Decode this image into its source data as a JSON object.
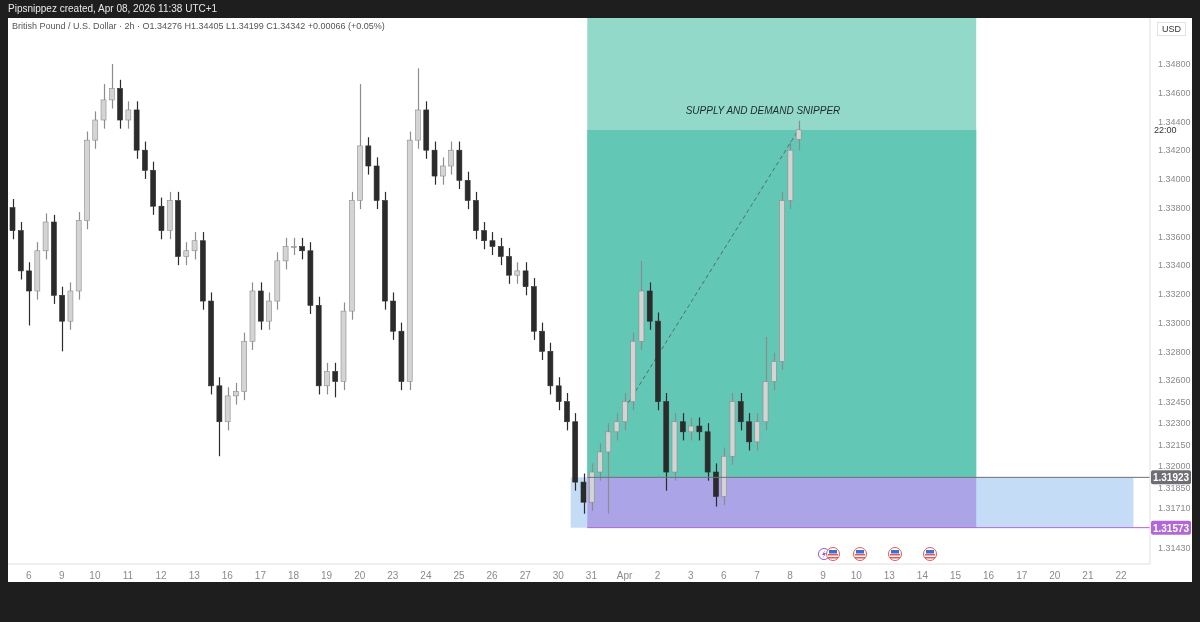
{
  "chart_data": {
    "type": "candlestick",
    "title": "Pipsnippez created, Apr 08, 2026 11:38 UTC+1",
    "subtitle": "British Pound / U.S. Dollar · 2h ·  O1.34276  H1.34405  L1.34199  C1.34342  +0.00066 (+0.05%)",
    "annotations": [
      "USD",
      "22:00",
      "SUPPLY AND DEMAND SNIPPER"
    ],
    "categories": [
      null,
      null,
      "6",
      null,
      null,
      null,
      "9",
      null,
      null,
      null,
      "10",
      null,
      null,
      null,
      "11",
      null,
      null,
      null,
      "12",
      null,
      null,
      null,
      "13",
      null,
      null,
      null,
      "16",
      null,
      null,
      null,
      "17",
      null,
      null,
      null,
      "18",
      null,
      null,
      null,
      "19",
      null,
      null,
      null,
      "20",
      null,
      null,
      null,
      "23",
      null,
      null,
      null,
      "24",
      null,
      null,
      null,
      "25",
      null,
      null,
      null,
      "26",
      null,
      null,
      null,
      "27",
      null,
      null,
      null,
      "30",
      null,
      null,
      null,
      "31",
      null,
      null,
      null,
      "Apr",
      null,
      null,
      null,
      "2",
      null,
      null,
      null,
      "3",
      null,
      null,
      null,
      "6",
      null,
      null,
      null,
      "7",
      null,
      null,
      null,
      "8",
      null,
      null,
      null,
      "9",
      null,
      null,
      null,
      "10",
      null,
      null,
      null,
      "13",
      null,
      null,
      null,
      "14",
      null,
      null,
      null,
      "15",
      null,
      null,
      null,
      "16",
      null,
      null,
      null,
      "17",
      null,
      null,
      null,
      "20",
      null,
      null,
      null,
      "21",
      null,
      null,
      null,
      "22",
      null,
      null,
      null
    ],
    "ohlc": [
      [
        1.338,
        1.3386,
        1.3358,
        1.3364
      ],
      [
        1.3364,
        1.337,
        1.333,
        1.3336
      ],
      [
        1.3336,
        1.3342,
        1.3298,
        1.3322
      ],
      [
        1.3322,
        1.3356,
        1.3316,
        1.335
      ],
      [
        1.335,
        1.3376,
        1.3344,
        1.337
      ],
      [
        1.337,
        1.3375,
        1.3313,
        1.3319
      ],
      [
        1.3319,
        1.3325,
        1.328,
        1.3301
      ],
      [
        1.3301,
        1.3328,
        1.3295,
        1.3322
      ],
      [
        1.3322,
        1.3377,
        1.3316,
        1.3371
      ],
      [
        1.3371,
        1.3433,
        1.3365,
        1.3427
      ],
      [
        1.3427,
        1.3447,
        1.3421,
        1.3441
      ],
      [
        1.3441,
        1.3466,
        1.3435,
        1.3455
      ],
      [
        1.3455,
        1.348,
        1.3449,
        1.3463
      ],
      [
        1.3463,
        1.3469,
        1.3435,
        1.3441
      ],
      [
        1.3441,
        1.3454,
        1.3435,
        1.3448
      ],
      [
        1.3448,
        1.3454,
        1.3414,
        1.342
      ],
      [
        1.342,
        1.3426,
        1.34,
        1.3406
      ],
      [
        1.3406,
        1.3412,
        1.3375,
        1.3381
      ],
      [
        1.3381,
        1.3387,
        1.3358,
        1.3364
      ],
      [
        1.3364,
        1.3391,
        1.3358,
        1.3385
      ],
      [
        1.3385,
        1.3391,
        1.334,
        1.3346
      ],
      [
        1.3346,
        1.3356,
        1.334,
        1.335
      ],
      [
        1.335,
        1.3363,
        1.3344,
        1.3357
      ],
      [
        1.3357,
        1.3363,
        1.3309,
        1.3315
      ],
      [
        1.3315,
        1.3321,
        1.325,
        1.3256
      ],
      [
        1.3256,
        1.3262,
        1.3207,
        1.3231
      ],
      [
        1.3231,
        1.3255,
        1.3225,
        1.3249
      ],
      [
        1.3249,
        1.3258,
        1.3243,
        1.3252
      ],
      [
        1.3252,
        1.3293,
        1.3246,
        1.3287
      ],
      [
        1.3287,
        1.3328,
        1.3281,
        1.3322
      ],
      [
        1.3322,
        1.3328,
        1.3295,
        1.3301
      ],
      [
        1.3301,
        1.3321,
        1.3295,
        1.3315
      ],
      [
        1.3315,
        1.3349,
        1.3309,
        1.3343
      ],
      [
        1.3343,
        1.3359,
        1.3337,
        1.3353
      ],
      [
        1.3353,
        1.3359,
        1.3347,
        1.3353
      ],
      [
        1.3353,
        1.3359,
        1.3344,
        1.335
      ],
      [
        1.335,
        1.3356,
        1.3306,
        1.3312
      ],
      [
        1.3312,
        1.3318,
        1.325,
        1.3256
      ],
      [
        1.3256,
        1.3272,
        1.325,
        1.3266
      ],
      [
        1.3266,
        1.3272,
        1.3248,
        1.3259
      ],
      [
        1.3259,
        1.3314,
        1.3253,
        1.3308
      ],
      [
        1.3308,
        1.3391,
        1.3302,
        1.3385
      ],
      [
        1.3385,
        1.3466,
        1.3379,
        1.3423
      ],
      [
        1.3423,
        1.3429,
        1.3403,
        1.3409
      ],
      [
        1.3409,
        1.3415,
        1.3379,
        1.3385
      ],
      [
        1.3385,
        1.3391,
        1.3309,
        1.3315
      ],
      [
        1.3315,
        1.3321,
        1.3288,
        1.3294
      ],
      [
        1.3294,
        1.33,
        1.3253,
        1.3259
      ],
      [
        1.3259,
        1.3433,
        1.3253,
        1.3427
      ],
      [
        1.3427,
        1.3477,
        1.3421,
        1.3448
      ],
      [
        1.3448,
        1.3454,
        1.3414,
        1.342
      ],
      [
        1.342,
        1.3426,
        1.3396,
        1.3402
      ],
      [
        1.3402,
        1.3415,
        1.3396,
        1.3409
      ],
      [
        1.3409,
        1.3426,
        1.3403,
        1.342
      ],
      [
        1.342,
        1.3426,
        1.3393,
        1.3399
      ],
      [
        1.3399,
        1.3405,
        1.3379,
        1.3385
      ],
      [
        1.3385,
        1.3391,
        1.3358,
        1.3364
      ],
      [
        1.3364,
        1.337,
        1.3351,
        1.3357
      ],
      [
        1.3357,
        1.3363,
        1.3347,
        1.3353
      ],
      [
        1.3353,
        1.3359,
        1.334,
        1.3346
      ],
      [
        1.3346,
        1.3352,
        1.3327,
        1.3333
      ],
      [
        1.3333,
        1.3342,
        1.3327,
        1.3336
      ],
      [
        1.3336,
        1.3342,
        1.3319,
        1.3325
      ],
      [
        1.3325,
        1.3331,
        1.3288,
        1.3294
      ],
      [
        1.3294,
        1.33,
        1.3274,
        1.328
      ],
      [
        1.328,
        1.3286,
        1.325,
        1.3256
      ],
      [
        1.3256,
        1.3262,
        1.3239,
        1.3245
      ],
      [
        1.3245,
        1.3251,
        1.3225,
        1.3231
      ],
      [
        1.3231,
        1.3237,
        1.3183,
        1.3189
      ],
      [
        1.3189,
        1.3195,
        1.3167,
        1.3175
      ],
      [
        1.3175,
        1.3202,
        1.3169,
        1.3196
      ],
      [
        1.3196,
        1.3216,
        1.319,
        1.321
      ],
      [
        1.321,
        1.323,
        1.3167,
        1.3224
      ],
      [
        1.3224,
        1.3237,
        1.3218,
        1.3231
      ],
      [
        1.3231,
        1.3251,
        1.3225,
        1.3245
      ],
      [
        1.3245,
        1.3293,
        1.3239,
        1.3287
      ],
      [
        1.3287,
        1.3343,
        1.3281,
        1.3322
      ],
      [
        1.3322,
        1.3328,
        1.3295,
        1.3301
      ],
      [
        1.3301,
        1.3307,
        1.3239,
        1.3245
      ],
      [
        1.3245,
        1.3251,
        1.3183,
        1.3196
      ],
      [
        1.3196,
        1.3237,
        1.319,
        1.3231
      ],
      [
        1.3231,
        1.3237,
        1.3218,
        1.3224
      ],
      [
        1.3224,
        1.3234,
        1.3218,
        1.3228
      ],
      [
        1.3228,
        1.3234,
        1.3218,
        1.3224
      ],
      [
        1.3224,
        1.323,
        1.319,
        1.3196
      ],
      [
        1.3196,
        1.3202,
        1.3172,
        1.3179
      ],
      [
        1.3179,
        1.3213,
        1.3173,
        1.3207
      ],
      [
        1.3207,
        1.3251,
        1.3201,
        1.3245
      ],
      [
        1.3245,
        1.3251,
        1.3225,
        1.3231
      ],
      [
        1.3231,
        1.3237,
        1.3211,
        1.3217
      ],
      [
        1.3217,
        1.3237,
        1.3211,
        1.3231
      ],
      [
        1.3231,
        1.329,
        1.3225,
        1.3259
      ],
      [
        1.3259,
        1.3279,
        1.3253,
        1.3273
      ],
      [
        1.3273,
        1.3391,
        1.3267,
        1.3385
      ],
      [
        1.3385,
        1.3426,
        1.3379,
        1.342
      ],
      [
        1.34276,
        1.34405,
        1.34199,
        1.34342
      ],
      null,
      null,
      null,
      null,
      null,
      null,
      null,
      null,
      null,
      null,
      null,
      null,
      null,
      null,
      null,
      null,
      null,
      null,
      null,
      null,
      null,
      null,
      null,
      null,
      null,
      null,
      null,
      null,
      null,
      null,
      null,
      null,
      null,
      null,
      null,
      null,
      null,
      null,
      null,
      null,
      null,
      null
    ],
    "colors": [
      "#2b2b2b",
      "#2b2b2b",
      "#2b2b2b",
      "#d4d4d4",
      "#d4d4d4",
      "#2b2b2b",
      "#2b2b2b",
      "#d4d4d4",
      "#d4d4d4",
      "#d4d4d4",
      "#d4d4d4",
      "#d4d4d4",
      "#d4d4d4",
      "#2b2b2b",
      "#d4d4d4",
      "#2b2b2b",
      "#2b2b2b",
      "#2b2b2b",
      "#2b2b2b",
      "#d4d4d4",
      "#2b2b2b",
      "#d4d4d4",
      "#d4d4d4",
      "#2b2b2b",
      "#2b2b2b",
      "#2b2b2b",
      "#d4d4d4",
      "#d4d4d4",
      "#d4d4d4",
      "#d4d4d4",
      "#2b2b2b",
      "#d4d4d4",
      "#d4d4d4",
      "#d4d4d4",
      "#d4d4d4",
      "#2b2b2b",
      "#2b2b2b",
      "#2b2b2b",
      "#d4d4d4",
      "#2b2b2b",
      "#d4d4d4",
      "#d4d4d4",
      "#d4d4d4",
      "#2b2b2b",
      "#2b2b2b",
      "#2b2b2b",
      "#2b2b2b",
      "#2b2b2b",
      "#d4d4d4",
      "#d4d4d4",
      "#2b2b2b",
      "#2b2b2b",
      "#d4d4d4",
      "#d4d4d4",
      "#2b2b2b",
      "#2b2b2b",
      "#2b2b2b",
      "#2b2b2b",
      "#2b2b2b",
      "#2b2b2b",
      "#2b2b2b",
      "#d4d4d4",
      "#2b2b2b",
      "#2b2b2b",
      "#2b2b2b",
      "#2b2b2b",
      "#2b2b2b",
      "#2b2b2b",
      "#2b2b2b",
      "#2b2b2b",
      "#d4d4d4",
      "#d4d4d4",
      "#d4d4d4",
      "#d4d4d4",
      "#d4d4d4",
      "#d4d4d4",
      "#d4d4d4",
      "#2b2b2b",
      "#2b2b2b",
      "#2b2b2b",
      "#d4d4d4",
      "#2b2b2b",
      "#d4d4d4",
      "#2b2b2b",
      "#2b2b2b",
      "#2b2b2b",
      "#d4d4d4",
      "#d4d4d4",
      "#2b2b2b",
      "#2b2b2b",
      "#d4d4d4",
      "#d4d4d4",
      "#d4d4d4",
      "#d4d4d4",
      "#d4d4d4",
      "#d4d4d4",
      null,
      null,
      null,
      null,
      null,
      null,
      null,
      null,
      null,
      null,
      null,
      null,
      null,
      null,
      null,
      null,
      null,
      null,
      null,
      null,
      null,
      null,
      null,
      null,
      null,
      null,
      null,
      null,
      null,
      null,
      null,
      null,
      null,
      null,
      null,
      null,
      null,
      null,
      null,
      null,
      null,
      null
    ],
    "series": [
      {
        "type": "line",
        "color": "#4f6f68",
        "line_style": "dashed",
        "values": [
          null,
          null,
          null,
          null,
          null,
          null,
          null,
          null,
          null,
          null,
          null,
          null,
          null,
          null,
          null,
          null,
          null,
          null,
          null,
          null,
          null,
          null,
          null,
          null,
          null,
          null,
          null,
          null,
          null,
          null,
          null,
          null,
          null,
          null,
          null,
          null,
          null,
          null,
          null,
          null,
          null,
          null,
          null,
          null,
          null,
          null,
          null,
          null,
          null,
          null,
          null,
          null,
          null,
          null,
          null,
          null,
          null,
          null,
          null,
          null,
          null,
          null,
          null,
          null,
          null,
          null,
          null,
          null,
          null,
          null,
          null,
          null,
          null,
          null,
          1.324,
          null,
          null,
          null,
          null,
          null,
          null,
          null,
          null,
          null,
          null,
          null,
          null,
          null,
          null,
          null,
          null,
          null,
          null,
          null,
          null,
          1.3434,
          null,
          null,
          null,
          null,
          null,
          null,
          null,
          null,
          null,
          null,
          null,
          null,
          null,
          null,
          null,
          null,
          null,
          null,
          null,
          null,
          null,
          null,
          null,
          null,
          null,
          null,
          null,
          null,
          null,
          null,
          null,
          null,
          null,
          null,
          null,
          null,
          null,
          null,
          null,
          null,
          null,
          null
        ]
      }
    ],
    "ylim": [
      1.3132,
      1.3512
    ],
    "yticks": [
      {
        "value": 1.348,
        "label": "1.34800"
      },
      {
        "value": 1.346,
        "label": "1.34600"
      },
      {
        "value": 1.344,
        "label": "1.34400"
      },
      {
        "value": 1.342,
        "label": "1.34200"
      },
      {
        "value": 1.34,
        "label": "1.34000"
      },
      {
        "value": 1.338,
        "label": "1.33800"
      },
      {
        "value": 1.336,
        "label": "1.33600"
      },
      {
        "value": 1.334,
        "label": "1.33400"
      },
      {
        "value": 1.332,
        "label": "1.33200"
      },
      {
        "value": 1.33,
        "label": "1.33000"
      },
      {
        "value": 1.328,
        "label": "1.32800"
      },
      {
        "value": 1.326,
        "label": "1.32600"
      },
      {
        "value": 1.3245,
        "label": "1.32450"
      },
      {
        "value": 1.323,
        "label": "1.32300"
      },
      {
        "value": 1.3215,
        "label": "1.32150"
      },
      {
        "value": 1.32,
        "label": "1.32000"
      },
      {
        "value": 1.3185,
        "label": "1.31850"
      },
      {
        "value": 1.3171,
        "label": "1.31710"
      },
      {
        "value": 1.3143,
        "label": "1.31430"
      }
    ],
    "bands": [
      {
        "axis": "y",
        "from": 1.31573,
        "to": 1.31923,
        "color": "#c5dcf7"
      },
      {
        "axis": "y",
        "from": 1.31923,
        "to": 1.3512,
        "color": "#92d9ca"
      },
      {
        "axis": "y",
        "from": 1.31923,
        "to": 1.3434,
        "color": "#63c7b6"
      },
      {
        "axis": "y",
        "from": 1.31573,
        "to": 1.31923,
        "color": "#aba4e6"
      }
    ],
    "ref_lines": [
      {
        "axis": "y",
        "value": 1.31923,
        "label": "1.31923",
        "color": "#6e6e74"
      },
      {
        "axis": "y",
        "value": 1.31573,
        "label": "1.31573",
        "color": "#b267d8"
      }
    ]
  }
}
